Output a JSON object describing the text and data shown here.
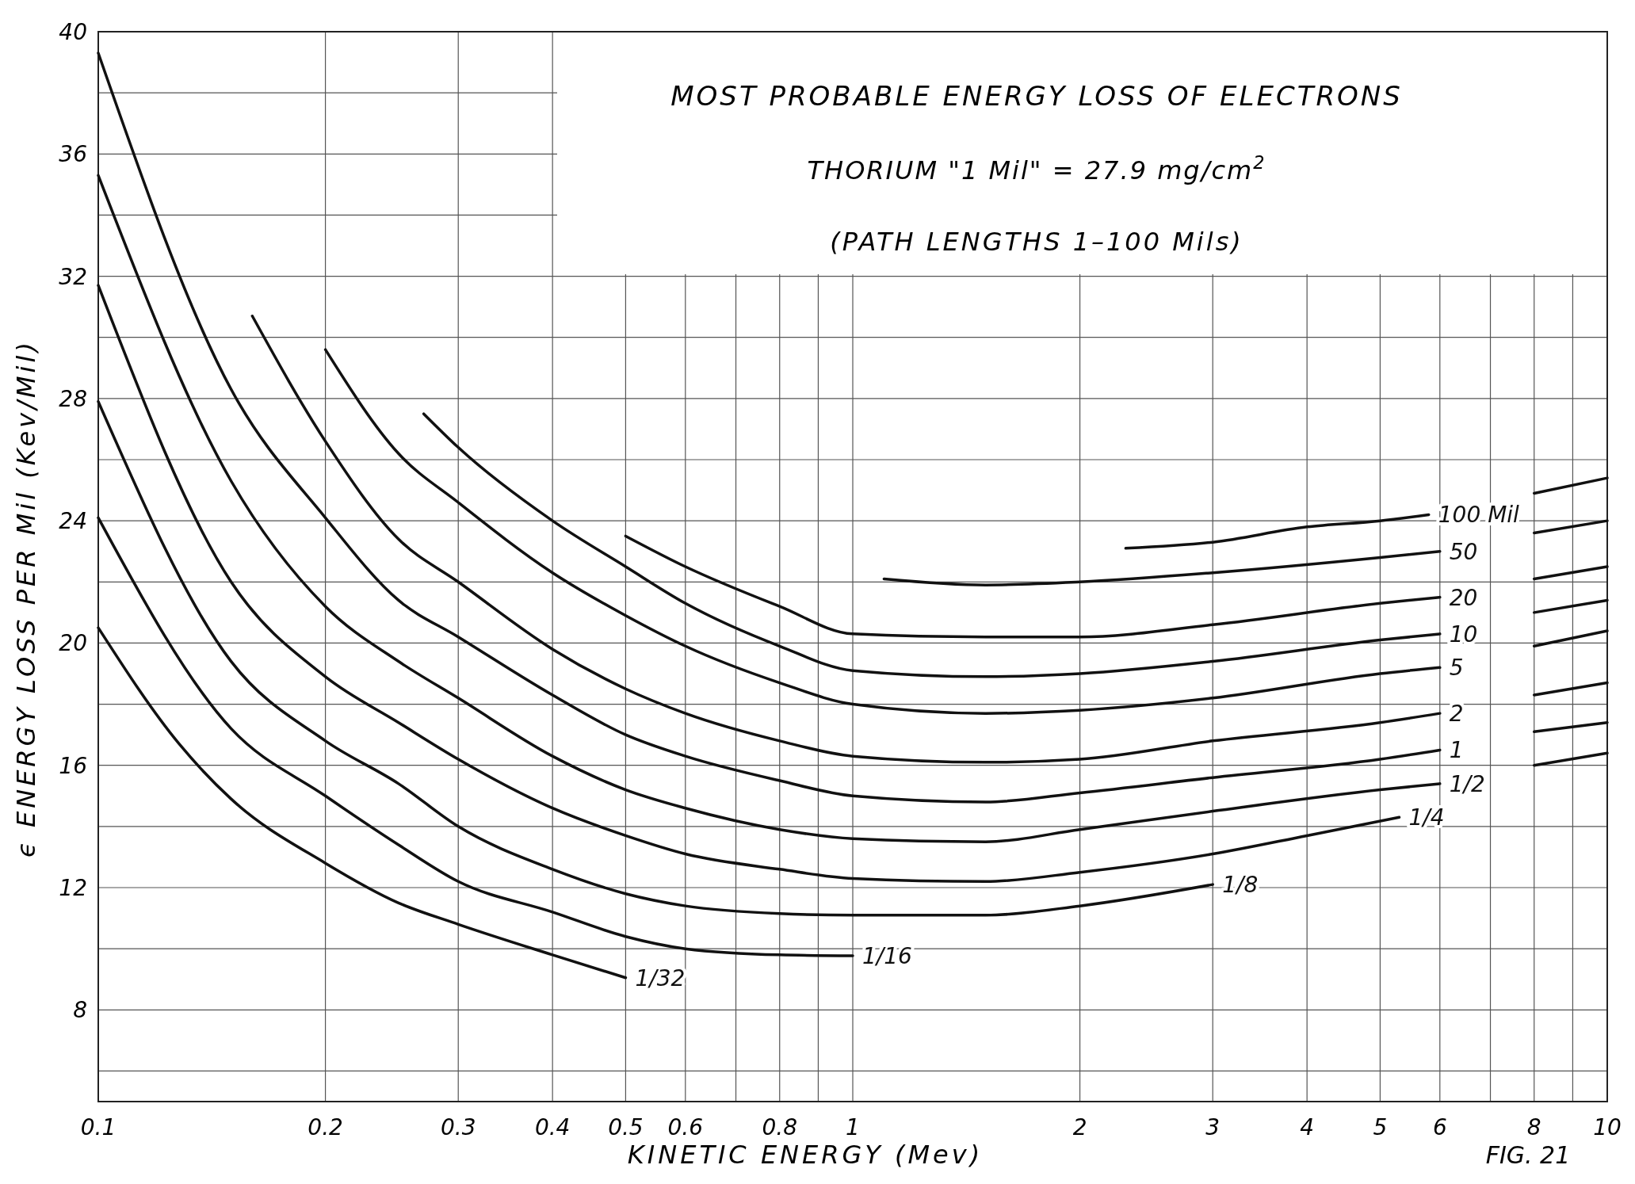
{
  "chart_data": {
    "type": "line",
    "title": "MOST PROBABLE ENERGY LOSS OF ELECTRONS",
    "subtitle": "THORIUM \"1 Mil\" = 27.9 mg/cm$^{2}$",
    "xlabel": "KINETIC ENERGY (Mev)",
    "ylabel": "ϵ ENERGY LOSS PER Mil (Kev/Mil)",
    "annotations": [
      "(PATH LENGTHS 1–100 Mils)",
      "FIG. 21"
    ],
    "log": "x",
    "grid": true,
    "marker": "none",
    "line_style": "solid",
    "xlim": [
      0.1,
      10
    ],
    "ylim": [
      5,
      40
    ],
    "xticks": [
      0.1,
      0.2,
      0.3,
      0.4,
      0.5,
      0.6,
      {
        "value": 0.7,
        "label": null
      },
      0.8,
      {
        "value": 0.9,
        "label": null
      },
      1,
      2,
      3,
      4,
      5,
      6,
      {
        "value": 7,
        "label": null
      },
      8,
      {
        "value": 9,
        "label": null
      },
      10
    ],
    "yticks": [
      {
        "value": 6,
        "label": null
      },
      8,
      {
        "value": 10,
        "label": null
      },
      12,
      {
        "value": 14,
        "label": null
      },
      16,
      {
        "value": 18,
        "label": null
      },
      20,
      {
        "value": 22,
        "label": null
      },
      24,
      {
        "value": 26,
        "label": null
      },
      28,
      {
        "value": 30,
        "label": null
      },
      32,
      {
        "value": 34,
        "label": null
      },
      36,
      {
        "value": 38,
        "label": null
      },
      40
    ],
    "series": [
      {
        "name": "1/32",
        "color": "#111111",
        "x": [
          0.1,
          0.128,
          0.15,
          0.2,
          0.25,
          0.3,
          0.4,
          0.5
        ],
        "values": [
          20.5,
          16.7,
          14.9,
          12.8,
          11.5,
          10.8,
          9.8,
          9.05
        ]
      },
      {
        "name": "1/16",
        "color": "#111111",
        "x": [
          0.1,
          0.15,
          0.2,
          0.25,
          0.3,
          0.4,
          0.5,
          0.6,
          0.8,
          1
        ],
        "values": [
          24.1,
          17.2,
          15.0,
          13.4,
          12.2,
          11.2,
          10.4,
          10.0,
          9.8,
          9.77
        ]
      },
      {
        "name": "1/8",
        "color": "#111111",
        "x": [
          0.1,
          0.15,
          0.2,
          0.25,
          0.3,
          0.4,
          0.5,
          0.6,
          0.8,
          1,
          1.5,
          2,
          3
        ],
        "values": [
          27.9,
          19.4,
          16.8,
          15.4,
          14.0,
          12.6,
          11.8,
          11.4,
          11.15,
          11.1,
          11.1,
          11.4,
          12.1
        ]
      },
      {
        "name": "1/4",
        "color": "#111111",
        "x": [
          0.1,
          0.15,
          0.2,
          0.25,
          0.3,
          0.4,
          0.5,
          0.6,
          0.8,
          1,
          1.5,
          2,
          3,
          4,
          5.3
        ],
        "values": [
          31.7,
          22.0,
          18.9,
          17.4,
          16.2,
          14.6,
          13.7,
          13.1,
          12.6,
          12.3,
          12.2,
          12.5,
          13.1,
          13.7,
          14.3
        ]
      },
      {
        "name": "1/2",
        "color": "#111111",
        "x": [
          0.1,
          0.15,
          0.2,
          0.25,
          0.3,
          0.4,
          0.5,
          0.6,
          0.8,
          1,
          1.5,
          2,
          3,
          5,
          6,
          7,
          8,
          10
        ],
        "values": [
          35.3,
          25.3,
          21.2,
          19.4,
          18.2,
          16.3,
          15.2,
          14.6,
          13.9,
          13.6,
          13.5,
          13.9,
          14.5,
          15.2,
          15.4,
          null,
          16.0,
          16.4
        ]
      },
      {
        "name": "1",
        "color": "#111111",
        "x": [
          0.1,
          0.15,
          0.2,
          0.25,
          0.3,
          0.4,
          0.5,
          0.6,
          0.8,
          1,
          1.5,
          2,
          3,
          5,
          6,
          7,
          8,
          10
        ],
        "values": [
          39.3,
          28.3,
          24.1,
          21.4,
          20.2,
          18.3,
          17.0,
          16.3,
          15.5,
          15.0,
          14.8,
          15.1,
          15.6,
          16.2,
          16.5,
          null,
          17.1,
          17.4
        ]
      },
      {
        "name": "2",
        "color": "#111111",
        "x": [
          0.16,
          0.2,
          0.25,
          0.3,
          0.4,
          0.5,
          0.6,
          0.8,
          1,
          1.5,
          2,
          3,
          5,
          6,
          7,
          8,
          10
        ],
        "values": [
          30.7,
          26.6,
          23.4,
          22.0,
          19.8,
          18.5,
          17.7,
          16.8,
          16.3,
          16.1,
          16.2,
          16.8,
          17.4,
          17.7,
          null,
          18.3,
          18.7
        ]
      },
      {
        "name": "5",
        "color": "#111111",
        "x": [
          0.2,
          0.25,
          0.3,
          0.4,
          0.5,
          0.6,
          0.8,
          1,
          1.5,
          2,
          3,
          5,
          6,
          7,
          8,
          10
        ],
        "values": [
          29.6,
          26.2,
          24.6,
          22.3,
          20.9,
          19.9,
          18.7,
          18.0,
          17.7,
          17.8,
          18.2,
          19.0,
          19.2,
          null,
          19.9,
          20.4
        ]
      },
      {
        "name": "10",
        "color": "#111111",
        "x": [
          0.27,
          0.3,
          0.4,
          0.5,
          0.6,
          0.8,
          1,
          1.5,
          2,
          3,
          5,
          6,
          7,
          8,
          10
        ],
        "values": [
          27.5,
          26.4,
          24.0,
          22.5,
          21.3,
          19.9,
          19.1,
          18.9,
          19.0,
          19.4,
          20.1,
          20.3,
          null,
          21.0,
          21.4
        ]
      },
      {
        "name": "20",
        "color": "#111111",
        "x": [
          0.5,
          0.6,
          0.8,
          1,
          1.5,
          2,
          3,
          5,
          6,
          7,
          8,
          10
        ],
        "values": [
          23.5,
          22.5,
          21.2,
          20.3,
          20.2,
          20.2,
          20.6,
          21.3,
          21.5,
          null,
          22.1,
          22.5
        ]
      },
      {
        "name": "50",
        "color": "#111111",
        "x": [
          1.1,
          1.5,
          2,
          3,
          5,
          6,
          7,
          8,
          10
        ],
        "values": [
          22.1,
          21.9,
          22.0,
          22.3,
          22.8,
          23.0,
          null,
          23.6,
          24.0
        ]
      },
      {
        "name": "100 Mil",
        "color": "#111111",
        "x": [
          2.3,
          3,
          4,
          5,
          5.8,
          7,
          8,
          10
        ],
        "values": [
          23.1,
          23.3,
          23.8,
          24.0,
          24.2,
          null,
          24.9,
          25.4
        ]
      }
    ]
  }
}
